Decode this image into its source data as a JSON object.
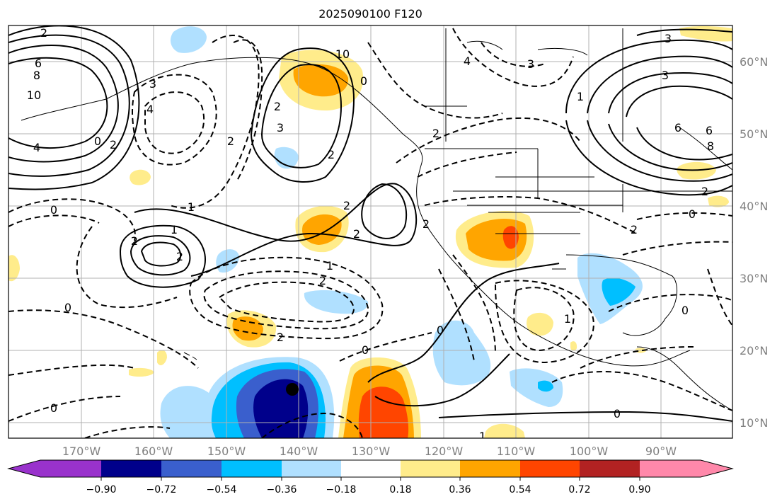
{
  "title": "2025090100 F120",
  "lat_labels": [
    "60°N",
    "50°N",
    "40°N",
    "30°N",
    "20°N",
    "10°N"
  ],
  "lon_labels": [
    "170°W",
    "160°W",
    "150°W",
    "140°W",
    "130°W",
    "120°W",
    "110°W",
    "100°W",
    "90°W"
  ],
  "colorbar": {
    "ticks": [
      "−0.90",
      "−0.72",
      "−0.54",
      "−0.36",
      "−0.18",
      "0.18",
      "0.36",
      "0.54",
      "0.72",
      "0.90"
    ],
    "colors": [
      "#9932cc",
      "#00008b",
      "#3a5fcd",
      "#00bfff",
      "#b0e0ff",
      "#ffffff",
      "#ffec8b",
      "#ffa500",
      "#ff4500",
      "#b22222",
      "#ff88aa"
    ]
  },
  "contour_labels": [
    "2",
    "6",
    "8",
    "10",
    "4",
    "0",
    "2",
    "3",
    "4",
    "2",
    "3",
    "2",
    "10",
    "0",
    "2",
    "2",
    "4",
    "3",
    "1",
    "2",
    "1",
    "2",
    "2",
    "0",
    "1",
    "2",
    "2",
    "0",
    "2",
    "2",
    "0",
    "0",
    "1",
    "0",
    "3",
    "6",
    "6",
    "8",
    "3",
    "2",
    "0",
    "1",
    "2",
    "1",
    "0"
  ],
  "marker": "center"
}
